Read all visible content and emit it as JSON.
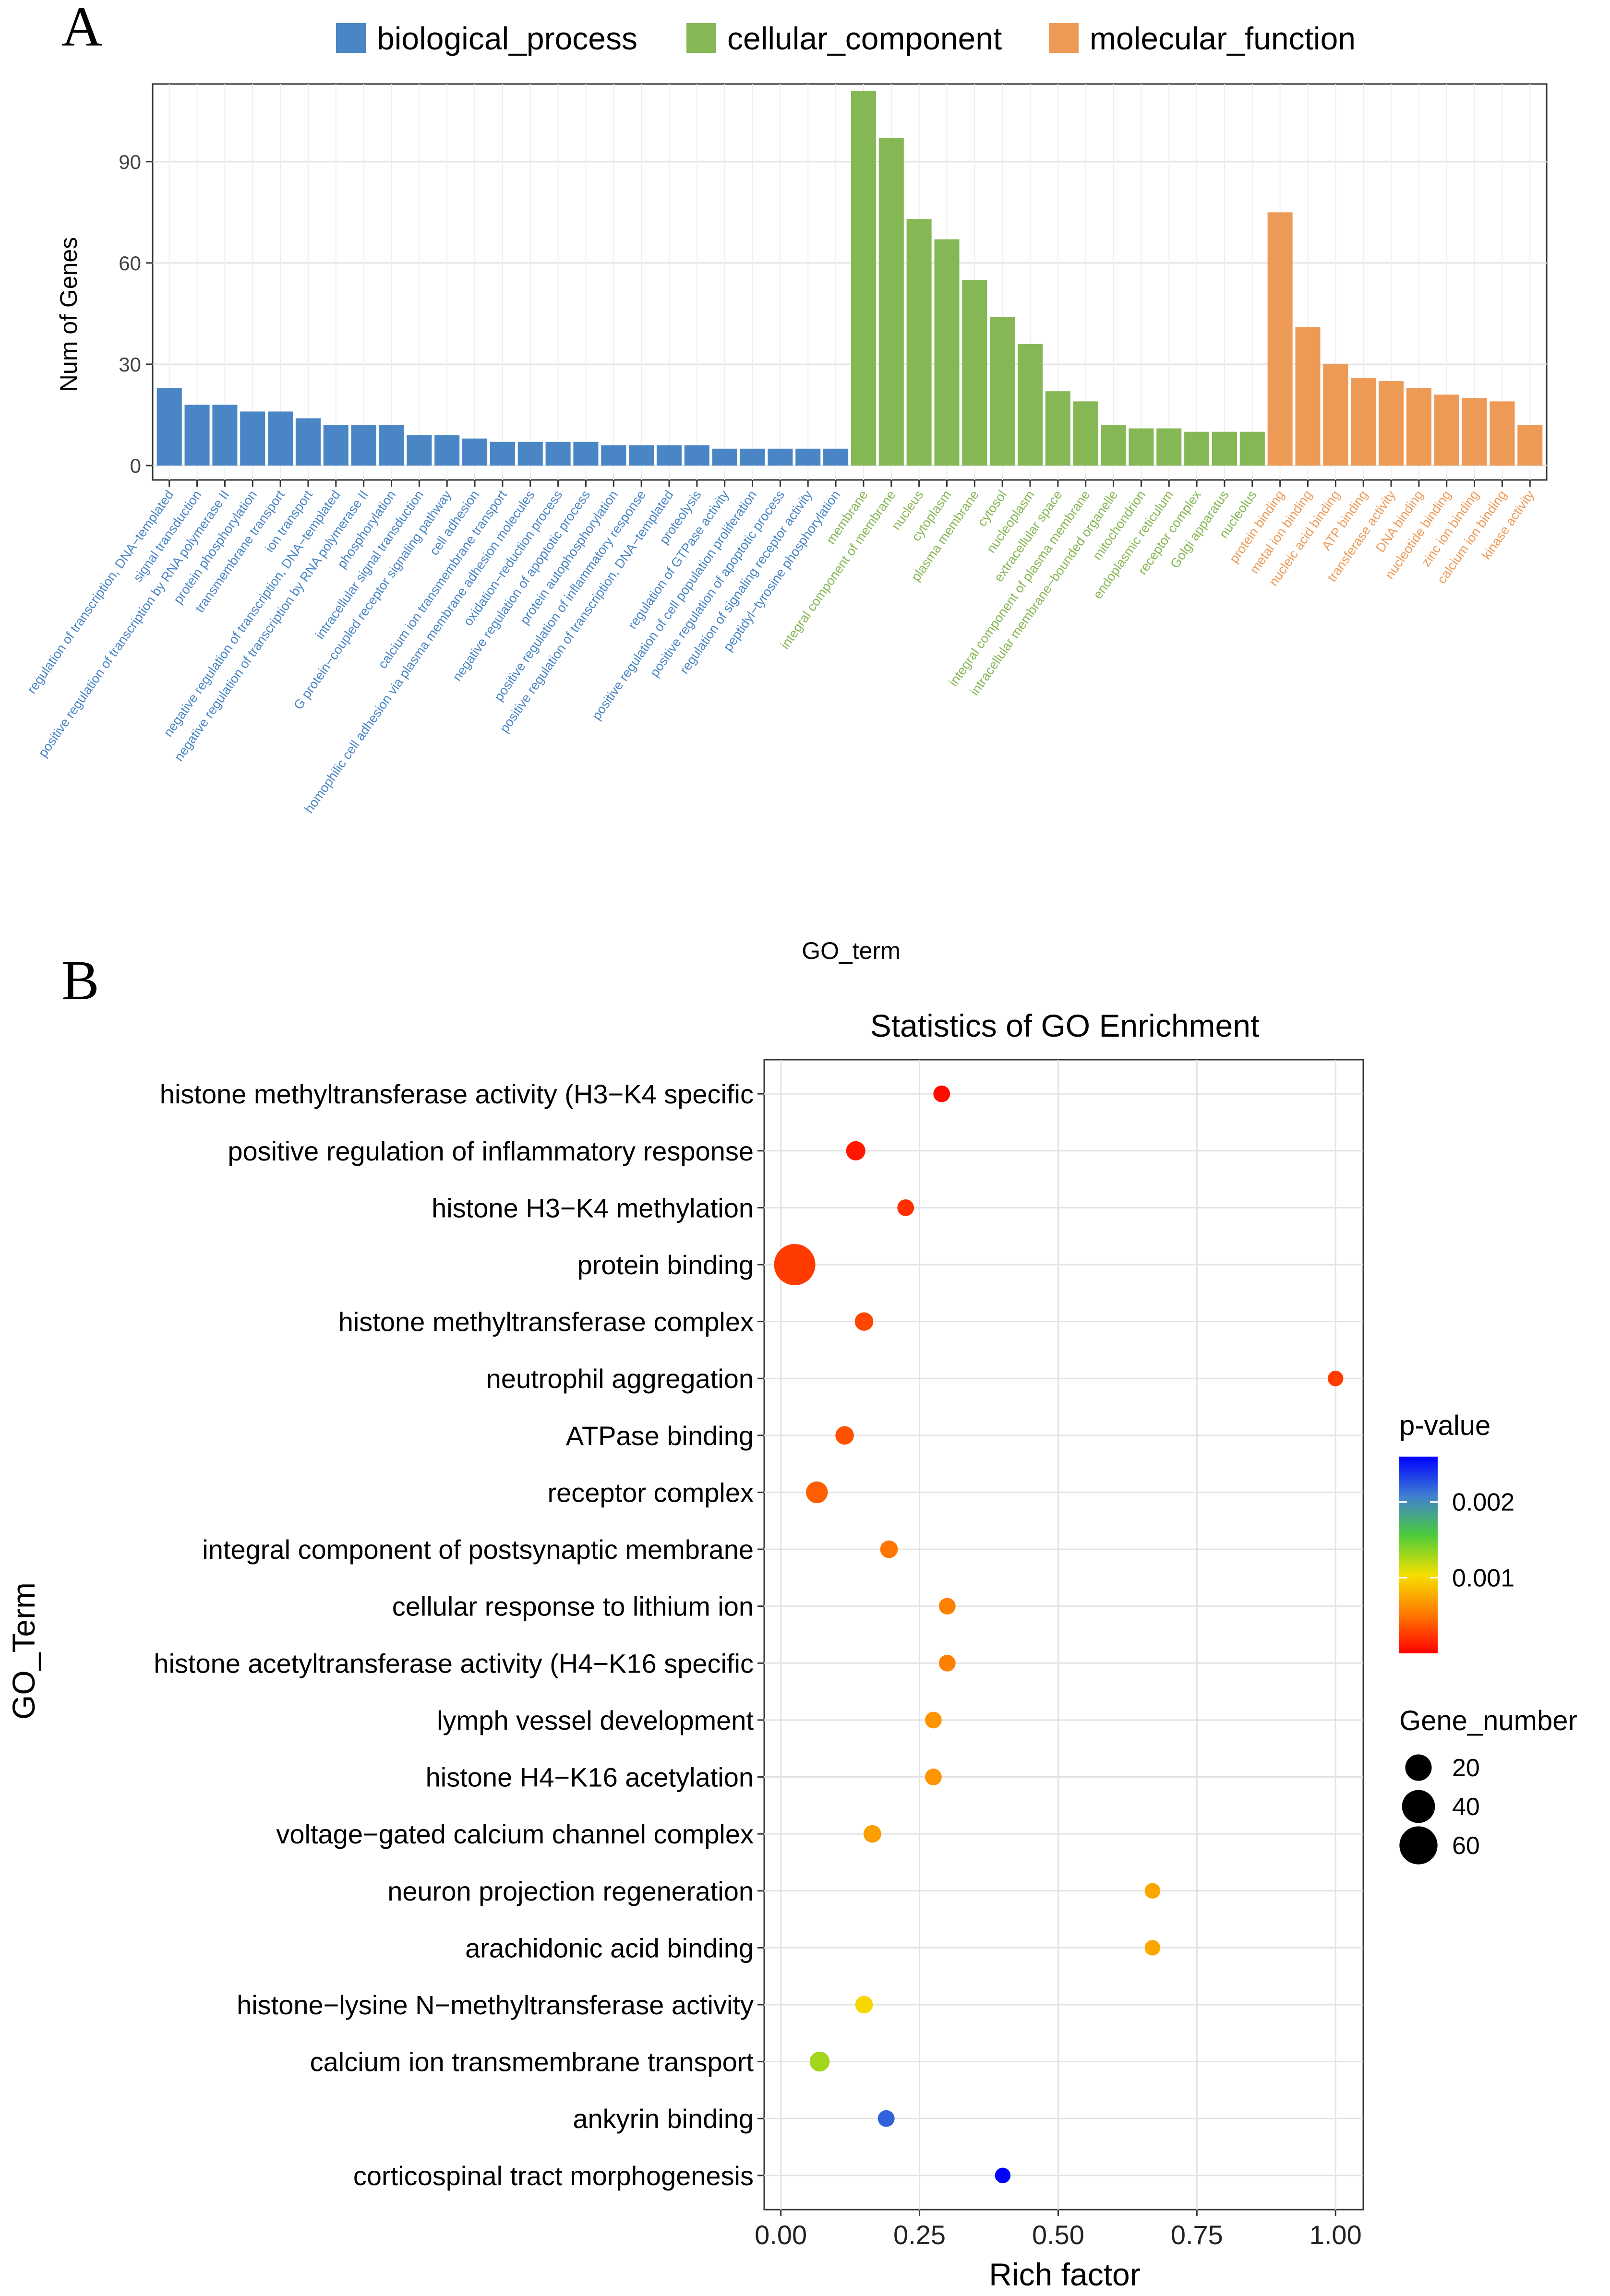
{
  "panel_labels": {
    "a": "A",
    "b": "B"
  },
  "chart_data": [
    {
      "type": "bar",
      "title": "",
      "xlabel": "GO_term",
      "ylabel": "Num of Genes",
      "ylim": [
        0,
        113
      ],
      "yticks": [
        0,
        30,
        60,
        90
      ],
      "grid": true,
      "legend": {
        "placement": "top",
        "entries": [
          {
            "name": "biological_process",
            "color": "#4a86c5"
          },
          {
            "name": "cellular_component",
            "color": "#86b755"
          },
          {
            "name": "molecular_function",
            "color": "#ee9a57"
          }
        ]
      },
      "bars": [
        {
          "label": "regulation of transcription, DNA−templated",
          "value": 23,
          "group": "biological_process"
        },
        {
          "label": "signal transduction",
          "value": 18,
          "group": "biological_process"
        },
        {
          "label": "positive regulation of transcription by RNA polymerase II",
          "value": 18,
          "group": "biological_process"
        },
        {
          "label": "protein phosphorylation",
          "value": 16,
          "group": "biological_process"
        },
        {
          "label": "transmembrane transport",
          "value": 16,
          "group": "biological_process"
        },
        {
          "label": "ion transport",
          "value": 14,
          "group": "biological_process"
        },
        {
          "label": "negative regulation of transcription, DNA−templated",
          "value": 12,
          "group": "biological_process"
        },
        {
          "label": "negative regulation of transcription by RNA polymerase II",
          "value": 12,
          "group": "biological_process"
        },
        {
          "label": "phosphorylation",
          "value": 12,
          "group": "biological_process"
        },
        {
          "label": "intracellular signal transduction",
          "value": 9,
          "group": "biological_process"
        },
        {
          "label": "G protein−coupled receptor signaling pathway",
          "value": 9,
          "group": "biological_process"
        },
        {
          "label": "cell adhesion",
          "value": 8,
          "group": "biological_process"
        },
        {
          "label": "calcium ion transmembrane transport",
          "value": 7,
          "group": "biological_process"
        },
        {
          "label": "homophilic cell adhesion via plasma membrane adhesion molecules",
          "value": 7,
          "group": "biological_process"
        },
        {
          "label": "oxidation−reduction process",
          "value": 7,
          "group": "biological_process"
        },
        {
          "label": "negative regulation of apoptotic process",
          "value": 7,
          "group": "biological_process"
        },
        {
          "label": "protein autophosphorylation",
          "value": 6,
          "group": "biological_process"
        },
        {
          "label": "positive regulation of inflammatory response",
          "value": 6,
          "group": "biological_process"
        },
        {
          "label": "positive regulation of transcription, DNA−templated",
          "value": 6,
          "group": "biological_process"
        },
        {
          "label": "proteolysis",
          "value": 6,
          "group": "biological_process"
        },
        {
          "label": "regulation of GTPase activity",
          "value": 5,
          "group": "biological_process"
        },
        {
          "label": "positive regulation of cell population proliferation",
          "value": 5,
          "group": "biological_process"
        },
        {
          "label": "positive regulation of apoptotic process",
          "value": 5,
          "group": "biological_process"
        },
        {
          "label": "regulation of signaling receptor activity",
          "value": 5,
          "group": "biological_process"
        },
        {
          "label": "peptidyl−tyrosine phosphorylation",
          "value": 5,
          "group": "biological_process"
        },
        {
          "label": "membrane",
          "value": 111,
          "group": "cellular_component"
        },
        {
          "label": "integral component of membrane",
          "value": 97,
          "group": "cellular_component"
        },
        {
          "label": "nucleus",
          "value": 73,
          "group": "cellular_component"
        },
        {
          "label": "cytoplasm",
          "value": 67,
          "group": "cellular_component"
        },
        {
          "label": "plasma membrane",
          "value": 55,
          "group": "cellular_component"
        },
        {
          "label": "cytosol",
          "value": 44,
          "group": "cellular_component"
        },
        {
          "label": "nucleoplasm",
          "value": 36,
          "group": "cellular_component"
        },
        {
          "label": "extracellular space",
          "value": 22,
          "group": "cellular_component"
        },
        {
          "label": "integral component of plasma membrane",
          "value": 19,
          "group": "cellular_component"
        },
        {
          "label": "intracellular membrane−bounded organelle",
          "value": 12,
          "group": "cellular_component"
        },
        {
          "label": "mitochondrion",
          "value": 11,
          "group": "cellular_component"
        },
        {
          "label": "endoplasmic reticulum",
          "value": 11,
          "group": "cellular_component"
        },
        {
          "label": "receptor complex",
          "value": 10,
          "group": "cellular_component"
        },
        {
          "label": "Golgi apparatus",
          "value": 10,
          "group": "cellular_component"
        },
        {
          "label": "nucleolus",
          "value": 10,
          "group": "cellular_component"
        },
        {
          "label": "protein binding",
          "value": 75,
          "group": "molecular_function"
        },
        {
          "label": "metal ion binding",
          "value": 41,
          "group": "molecular_function"
        },
        {
          "label": "nucleic acid binding",
          "value": 30,
          "group": "molecular_function"
        },
        {
          "label": "ATP binding",
          "value": 26,
          "group": "molecular_function"
        },
        {
          "label": "transferase activity",
          "value": 25,
          "group": "molecular_function"
        },
        {
          "label": "DNA binding",
          "value": 23,
          "group": "molecular_function"
        },
        {
          "label": "nucleotide binding",
          "value": 21,
          "group": "molecular_function"
        },
        {
          "label": "zinc ion binding",
          "value": 20,
          "group": "molecular_function"
        },
        {
          "label": "calcium ion binding",
          "value": 19,
          "group": "molecular_function"
        },
        {
          "label": "kinase activity",
          "value": 12,
          "group": "molecular_function"
        }
      ]
    },
    {
      "type": "scatter",
      "title": "Statistics of GO Enrichment",
      "xlabel": "Rich factor",
      "ylabel": "GO_Term",
      "xlim": [
        -0.03,
        1.05
      ],
      "xticks": [
        0.0,
        0.25,
        0.5,
        0.75,
        1.0
      ],
      "xtick_labels": [
        "0.00",
        "0.25",
        "0.50",
        "0.75",
        "1.00"
      ],
      "grid": true,
      "color_legend": {
        "title": "p-value",
        "range": [
          0,
          0.0026
        ],
        "ticks": [
          0.001,
          0.002
        ],
        "tick_labels": [
          "0.001",
          "0.002"
        ],
        "colors": [
          "#ff0000",
          "#ff7a00",
          "#f5e000",
          "#4ccc3a",
          "#3f7fd2",
          "#0000ff"
        ]
      },
      "size_legend": {
        "title": "Gene_number",
        "values": [
          20,
          40,
          60
        ],
        "labels": [
          "20",
          "40",
          "60"
        ]
      },
      "points": [
        {
          "term": "histone methyltransferase activity (H3−K4 specific",
          "rich_factor": 0.29,
          "p_value": 5e-05,
          "gene_number": 3
        },
        {
          "term": "positive regulation of inflammatory response",
          "rich_factor": 0.135,
          "p_value": 0.0001,
          "gene_number": 6
        },
        {
          "term": "histone H3−K4 methylation",
          "rich_factor": 0.225,
          "p_value": 0.0002,
          "gene_number": 3
        },
        {
          "term": "protein binding",
          "rich_factor": 0.025,
          "p_value": 0.00025,
          "gene_number": 75
        },
        {
          "term": "histone methyltransferase complex",
          "rich_factor": 0.15,
          "p_value": 0.0003,
          "gene_number": 5
        },
        {
          "term": "neutrophil aggregation",
          "rich_factor": 1.0,
          "p_value": 0.00025,
          "gene_number": 2
        },
        {
          "term": "ATPase binding",
          "rich_factor": 0.115,
          "p_value": 0.00035,
          "gene_number": 5
        },
        {
          "term": "receptor complex",
          "rich_factor": 0.065,
          "p_value": 0.0004,
          "gene_number": 10
        },
        {
          "term": "integral component of postsynaptic membrane",
          "rich_factor": 0.195,
          "p_value": 0.0005,
          "gene_number": 4
        },
        {
          "term": "cellular response to lithium ion",
          "rich_factor": 0.3,
          "p_value": 0.00055,
          "gene_number": 3
        },
        {
          "term": "histone acetyltransferase activity (H4−K16 specific",
          "rich_factor": 0.3,
          "p_value": 0.00055,
          "gene_number": 3
        },
        {
          "term": "lymph vessel development",
          "rich_factor": 0.275,
          "p_value": 0.00065,
          "gene_number": 3
        },
        {
          "term": "histone H4−K16 acetylation",
          "rich_factor": 0.275,
          "p_value": 0.00065,
          "gene_number": 3
        },
        {
          "term": "voltage−gated calcium channel complex",
          "rich_factor": 0.165,
          "p_value": 0.0007,
          "gene_number": 4
        },
        {
          "term": "neuron projection regeneration",
          "rich_factor": 0.67,
          "p_value": 0.00075,
          "gene_number": 2
        },
        {
          "term": "arachidonic acid binding",
          "rich_factor": 0.67,
          "p_value": 0.00075,
          "gene_number": 2
        },
        {
          "term": "histone−lysine N−methyltransferase activity",
          "rich_factor": 0.15,
          "p_value": 0.001,
          "gene_number": 4
        },
        {
          "term": "calcium ion transmembrane transport",
          "rich_factor": 0.07,
          "p_value": 0.0013,
          "gene_number": 7
        },
        {
          "term": "ankyrin binding",
          "rich_factor": 0.19,
          "p_value": 0.0022,
          "gene_number": 3
        },
        {
          "term": "corticospinal tract morphogenesis",
          "rich_factor": 0.4,
          "p_value": 0.0026,
          "gene_number": 2
        }
      ]
    }
  ]
}
